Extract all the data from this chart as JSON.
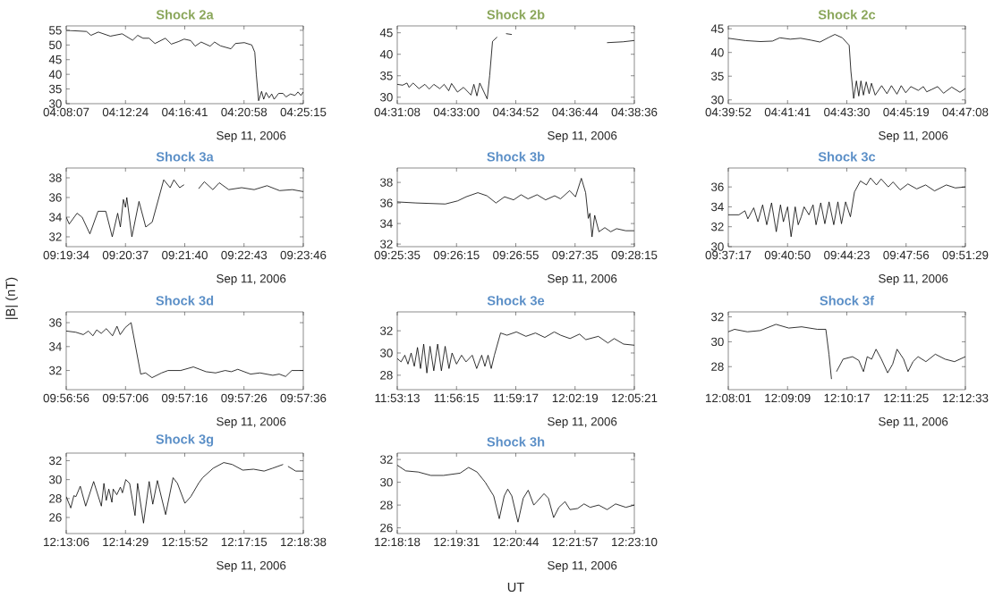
{
  "chart_data": [
    {
      "type": "line",
      "title": "Shock 2a",
      "annotations": [
        "Sep 11, 2006"
      ],
      "xlim": [
        4.13528,
        4.42083
      ],
      "ylim": [
        30,
        56.5
      ],
      "xticks": [
        {
          "value": 4.13528,
          "label": "04:08:07"
        },
        {
          "value": 4.20667,
          "label": "04:12:24"
        },
        {
          "value": 4.27806,
          "label": "04:16:41"
        },
        {
          "value": 4.34944,
          "label": "04:20:58"
        },
        {
          "value": 4.42083,
          "label": "04:25:15"
        }
      ],
      "yticks": [
        30,
        35,
        40,
        45,
        50,
        55
      ],
      "series": [
        {
          "color": "#000000",
          "x": [
            4.1353,
            4.1597,
            4.1651,
            4.174,
            4.1884,
            4.2027,
            4.2153,
            4.2214,
            4.2278,
            4.235,
            4.2422,
            4.2547,
            4.2619,
            4.2709,
            4.2773,
            4.2852,
            4.2906,
            4.2978,
            4.3086,
            4.3139,
            4.3211,
            4.3337,
            4.339,
            4.3498,
            4.3588,
            4.3624,
            4.3642,
            4.367,
            4.3706,
            4.3731,
            4.376,
            4.3796,
            4.3828,
            4.3857,
            4.3911,
            4.3964,
            4.4,
            4.4054,
            4.4108,
            4.4144,
            4.418,
            4.4208
          ],
          "values": [
            55.0,
            54.6,
            53.3,
            54.4,
            53.0,
            53.8,
            51.6,
            53.3,
            52.3,
            52.3,
            50.5,
            52.3,
            50.3,
            51.2,
            52.0,
            51.5,
            49.6,
            51.0,
            49.6,
            51.0,
            49.7,
            48.7,
            50.5,
            50.8,
            50.0,
            47.5,
            40.0,
            31.0,
            34.2,
            31.5,
            33.8,
            32.0,
            33.3,
            31.5,
            33.5,
            33.5,
            32.3,
            33.3,
            32.8,
            34.0,
            32.8,
            34.0
          ]
        }
      ]
    },
    {
      "type": "line",
      "title": "Shock 2b",
      "annotations": [
        "Sep 11, 2006"
      ],
      "xlim": [
        4.51889,
        4.64333
      ],
      "ylim": [
        28.5,
        46.6
      ],
      "xticks": [
        {
          "value": 4.51889,
          "label": "04:31:08"
        },
        {
          "value": 4.55,
          "label": "04:33:00"
        },
        {
          "value": 4.58111,
          "label": "04:34:52"
        },
        {
          "value": 4.61222,
          "label": "04:36:44"
        },
        {
          "value": 4.64333,
          "label": "04:38:36"
        }
      ],
      "yticks": [
        30,
        35,
        40,
        45
      ],
      "series": [
        {
          "color": "#000000",
          "x": [
            4.5189,
            4.5217,
            4.524,
            4.5251,
            4.5272,
            4.5303,
            4.5334,
            4.5357,
            4.5381,
            4.5412,
            4.5435,
            4.5459,
            4.5474,
            4.5505,
            4.5537,
            4.5576,
            4.5591,
            4.5607,
            4.5622,
            4.5661,
            4.5674,
            4.5689,
            4.5713,
            4.574,
            4.576,
            4.579,
            4.6,
            4.629,
            4.6374,
            4.6433
          ],
          "values": [
            33.0,
            32.8,
            33.3,
            32.3,
            33.3,
            32.0,
            33.0,
            31.9,
            33.0,
            32.0,
            33.0,
            31.5,
            33.2,
            31.2,
            32.3,
            30.5,
            33.0,
            30.3,
            33.3,
            29.6,
            35.0,
            43.0,
            44.0,
            null,
            44.8,
            44.6,
            null,
            42.7,
            42.9,
            43.2
          ]
        }
      ]
    },
    {
      "type": "line",
      "title": "Shock 2c",
      "annotations": [
        "Sep 11, 2006"
      ],
      "xlim": [
        4.66444,
        4.78556
      ],
      "ylim": [
        29.2,
        45.6
      ],
      "xticks": [
        {
          "value": 4.66444,
          "label": "04:39:52"
        },
        {
          "value": 4.69472,
          "label": "04:41:41"
        },
        {
          "value": 4.725,
          "label": "04:43:30"
        },
        {
          "value": 4.75528,
          "label": "04:45:19"
        },
        {
          "value": 4.78556,
          "label": "04:47:08"
        }
      ],
      "yticks": [
        30,
        35,
        40,
        45
      ],
      "series": [
        {
          "color": "#000000",
          "x": [
            4.66444,
            4.6733,
            4.6809,
            4.687,
            4.6908,
            4.6961,
            4.7014,
            4.7067,
            4.7113,
            4.7159,
            4.7189,
            4.7227,
            4.7262,
            4.7271,
            4.7285,
            4.7299,
            4.7311,
            4.7322,
            4.7335,
            4.7349,
            4.7364,
            4.7376,
            4.7395,
            4.7428,
            4.7455,
            4.7478,
            4.7506,
            4.7528,
            4.7551,
            4.7577,
            4.7615,
            4.7641,
            4.7658,
            4.7684,
            4.7714,
            4.7744,
            4.7786,
            4.7828,
            4.78556
          ],
          "values": [
            43.0,
            42.5,
            42.3,
            42.4,
            43.1,
            42.8,
            43.0,
            42.6,
            42.2,
            43.2,
            43.8,
            43.1,
            41.5,
            36.0,
            30.3,
            34.0,
            30.8,
            34.0,
            31.0,
            33.8,
            31.3,
            33.5,
            31.0,
            33.0,
            31.3,
            33.0,
            31.2,
            33.0,
            31.5,
            32.8,
            32.0,
            32.8,
            31.7,
            32.2,
            32.8,
            31.4,
            32.7,
            31.6,
            32.4
          ]
        }
      ]
    },
    {
      "type": "line",
      "title": "Shock 3a",
      "annotations": [
        "Sep 11, 2006"
      ],
      "xlim": [
        9.32611,
        9.39611
      ],
      "ylim": [
        31,
        39
      ],
      "xticks": [
        {
          "value": 9.32611,
          "label": "09:19:34"
        },
        {
          "value": 9.34361,
          "label": "09:20:37"
        },
        {
          "value": 9.36111,
          "label": "09:21:40"
        },
        {
          "value": 9.37861,
          "label": "09:22:43"
        },
        {
          "value": 9.39611,
          "label": "09:23:46"
        }
      ],
      "yticks": [
        32,
        34,
        36,
        38
      ],
      "series": [
        {
          "color": "#000000",
          "x": [
            9.32611,
            9.327,
            9.3293,
            9.3308,
            9.3331,
            9.3355,
            9.3378,
            9.3397,
            9.3413,
            9.3421,
            9.343,
            9.3436,
            9.344,
            9.3455,
            9.3476,
            9.3496,
            9.3515,
            9.3549,
            9.3568,
            9.3579,
            9.3596,
            9.3609,
            9.363,
            9.3652,
            9.3669,
            9.3694,
            9.3713,
            9.3741,
            9.3779,
            9.3816,
            9.3854,
            9.3891,
            9.3929,
            9.3961
          ],
          "values": [
            34.0,
            33.3,
            34.4,
            34.0,
            32.3,
            34.6,
            34.6,
            32.0,
            34.4,
            33.0,
            35.8,
            35.0,
            36.0,
            32.0,
            35.6,
            33.0,
            33.5,
            37.8,
            37.0,
            37.8,
            37.0,
            37.3,
            null,
            36.9,
            37.6,
            36.8,
            37.5,
            36.8,
            37.0,
            36.8,
            37.2,
            36.7,
            36.8,
            36.6
          ]
        }
      ]
    },
    {
      "type": "line",
      "title": "Shock 3b",
      "annotations": [
        "Sep 11, 2006"
      ],
      "xlim": [
        9.42639,
        9.47083
      ],
      "ylim": [
        31.75,
        39.4
      ],
      "xticks": [
        {
          "value": 9.42639,
          "label": "09:25:35"
        },
        {
          "value": 9.4375,
          "label": "09:26:15"
        },
        {
          "value": 9.44861,
          "label": "09:26:55"
        },
        {
          "value": 9.45972,
          "label": "09:27:35"
        },
        {
          "value": 9.47083,
          "label": "09:28:15"
        }
      ],
      "yticks": [
        32,
        34,
        36,
        38
      ],
      "series": [
        {
          "color": "#000000",
          "x": [
            9.4264,
            9.4299,
            9.4354,
            9.4377,
            9.4393,
            9.4415,
            9.4432,
            9.4449,
            9.4465,
            9.4482,
            9.4496,
            9.4509,
            9.4526,
            9.4542,
            9.4559,
            9.457,
            9.4587,
            9.4598,
            9.4609,
            9.4617,
            9.4622,
            9.4625,
            9.4629,
            9.4634,
            9.4642,
            9.4653,
            9.4664,
            9.4675,
            9.4692,
            9.4708
          ],
          "values": [
            36.1,
            36.0,
            35.9,
            36.2,
            36.6,
            37.0,
            36.7,
            36.0,
            36.6,
            36.3,
            36.8,
            36.4,
            36.8,
            36.3,
            36.7,
            36.4,
            37.2,
            36.6,
            38.4,
            37.0,
            34.5,
            35.0,
            32.7,
            34.8,
            33.2,
            33.6,
            33.2,
            33.5,
            33.3,
            33.3
          ]
        }
      ]
    },
    {
      "type": "line",
      "title": "Shock 3c",
      "annotations": [
        "Sep 11, 2006"
      ],
      "xlim": [
        9.62139,
        9.85806
      ],
      "ylim": [
        30,
        37.9
      ],
      "xticks": [
        {
          "value": 9.62139,
          "label": "09:37:17"
        },
        {
          "value": 9.68056,
          "label": "09:40:50"
        },
        {
          "value": 9.73972,
          "label": "09:44:23"
        },
        {
          "value": 9.79889,
          "label": "09:47:56"
        },
        {
          "value": 9.85806,
          "label": "09:51:29"
        }
      ],
      "yticks": [
        30,
        32,
        34,
        36
      ],
      "series": [
        {
          "color": "#000000",
          "x": [
            9.6214,
            9.632,
            9.638,
            9.6409,
            9.6468,
            9.651,
            9.6557,
            9.6598,
            9.6646,
            9.6693,
            9.6735,
            9.6764,
            9.6806,
            9.6841,
            9.6882,
            9.6912,
            9.6942,
            9.6971,
            9.7019,
            9.706,
            9.709,
            9.7137,
            9.7178,
            9.722,
            9.7267,
            9.7308,
            9.7344,
            9.7385,
            9.7433,
            9.7474,
            9.7533,
            9.7593,
            9.7634,
            9.7693,
            9.774,
            9.7811,
            9.7859,
            9.793,
            9.8007,
            9.8095,
            9.8184,
            9.8273,
            9.8391,
            9.848,
            9.85806
          ],
          "values": [
            33.2,
            33.2,
            33.6,
            32.8,
            33.9,
            32.5,
            34.2,
            32.2,
            34.4,
            31.5,
            34.2,
            32.5,
            34.0,
            31.0,
            34.0,
            32.2,
            33.0,
            34.0,
            33.2,
            34.2,
            32.2,
            34.4,
            32.3,
            34.5,
            32.2,
            34.5,
            32.3,
            34.5,
            33.0,
            35.5,
            36.6,
            36.2,
            36.9,
            36.2,
            36.8,
            36.0,
            36.5,
            35.7,
            36.3,
            35.8,
            36.2,
            35.6,
            36.2,
            35.9,
            36.0
          ]
        }
      ]
    },
    {
      "type": "line",
      "title": "Shock 3d",
      "ylabel": "|B| (nT)",
      "annotations": [
        "Sep 11, 2006"
      ],
      "xlim": [
        9.94889,
        9.96
      ],
      "ylim": [
        30.4,
        36.9
      ],
      "xticks": [
        {
          "value": 9.94889,
          "label": "09:56:56"
        },
        {
          "value": 9.95167,
          "label": "09:57:06"
        },
        {
          "value": 9.95444,
          "label": "09:57:16"
        },
        {
          "value": 9.95722,
          "label": "09:57:26"
        },
        {
          "value": 9.96,
          "label": "09:57:36"
        }
      ],
      "yticks": [
        32,
        34,
        36
      ],
      "series": [
        {
          "color": "#000000",
          "x": [
            9.94889,
            9.94934,
            9.94969,
            9.94993,
            9.95014,
            9.95032,
            9.95053,
            9.95077,
            9.95106,
            9.95127,
            9.95142,
            9.95166,
            9.95193,
            9.95211,
            9.95238,
            9.95261,
            9.95291,
            9.95336,
            9.95366,
            9.95425,
            9.95485,
            9.95544,
            9.95589,
            9.95634,
            9.95663,
            9.95693,
            9.95753,
            9.95797,
            9.95857,
            9.95887,
            9.95917,
            9.95946,
            9.96
          ],
          "values": [
            35.3,
            35.2,
            35.0,
            35.3,
            34.9,
            35.4,
            35.1,
            35.5,
            34.9,
            35.7,
            35.0,
            35.6,
            36.0,
            34.3,
            31.7,
            31.8,
            31.4,
            31.8,
            32.0,
            32.0,
            32.3,
            31.9,
            31.8,
            32.0,
            31.9,
            32.1,
            31.7,
            31.8,
            31.6,
            31.7,
            31.5,
            32.0,
            32.0
          ]
        }
      ]
    },
    {
      "type": "line",
      "title": "Shock 3e",
      "annotations": [
        "Sep 11, 2006"
      ],
      "xlim": [
        11.88694,
        12.08917
      ],
      "ylim": [
        26.7,
        33.7
      ],
      "xticks": [
        {
          "value": 11.88694,
          "label": "11:53:13"
        },
        {
          "value": 11.9375,
          "label": "11:56:15"
        },
        {
          "value": 11.98806,
          "label": "11:59:17"
        },
        {
          "value": 12.03861,
          "label": "12:02:19"
        },
        {
          "value": 12.08917,
          "label": "12:05:21"
        }
      ],
      "yticks": [
        28,
        30,
        32
      ],
      "series": [
        {
          "color": "#000000",
          "x": [
            11.88694,
            11.8902,
            11.8934,
            11.8961,
            11.8988,
            11.9015,
            11.9042,
            11.9068,
            11.9095,
            11.9122,
            11.9149,
            11.9181,
            11.9214,
            11.9246,
            11.9278,
            11.9311,
            11.9337,
            11.9375,
            11.9418,
            11.9456,
            11.9509,
            11.9547,
            11.959,
            11.9617,
            11.9644,
            11.9671,
            11.9698,
            11.9751,
            11.9805,
            11.9886,
            11.9967,
            12.0048,
            12.0128,
            12.0209,
            12.0263,
            12.0343,
            12.0424,
            12.0478,
            12.0585,
            12.0666,
            12.072,
            12.08,
            12.08917
          ],
          "values": [
            29.5,
            29.2,
            29.8,
            29.0,
            30.0,
            28.8,
            30.5,
            28.6,
            30.8,
            28.2,
            30.6,
            28.4,
            30.8,
            28.4,
            30.6,
            28.6,
            30.0,
            29.0,
            29.8,
            29.2,
            29.8,
            28.6,
            29.8,
            28.8,
            29.8,
            28.6,
            29.8,
            31.8,
            31.6,
            31.9,
            31.5,
            31.8,
            31.4,
            31.9,
            31.6,
            31.3,
            31.7,
            31.2,
            31.5,
            30.9,
            31.3,
            30.8,
            30.7
          ]
        }
      ]
    },
    {
      "type": "line",
      "title": "Shock 3f",
      "annotations": [
        "Sep 11, 2006"
      ],
      "xlim": [
        12.13361,
        12.20917
      ],
      "ylim": [
        26.15,
        32.4
      ],
      "xticks": [
        {
          "value": 12.13361,
          "label": "12:08:01"
        },
        {
          "value": 12.1525,
          "label": "12:09:09"
        },
        {
          "value": 12.17139,
          "label": "12:10:17"
        },
        {
          "value": 12.19028,
          "label": "12:11:25"
        },
        {
          "value": 12.20917,
          "label": "12:12:33"
        }
      ],
      "yticks": [
        28,
        30,
        32
      ],
      "series": [
        {
          "color": "#000000",
          "x": [
            12.13361,
            12.1356,
            12.1397,
            12.1438,
            12.1488,
            12.1529,
            12.157,
            12.162,
            12.1647,
            12.1657,
            12.1665,
            12.1673,
            12.1681,
            12.1702,
            12.1732,
            12.1752,
            12.1767,
            12.1779,
            12.1793,
            12.1807,
            12.1824,
            12.1844,
            12.186,
            12.1874,
            12.1895,
            12.1909,
            12.1925,
            12.1941,
            12.1966,
            12.1996,
            12.2027,
            12.2057,
            12.20917
          ],
          "values": [
            30.8,
            31.0,
            30.8,
            30.9,
            31.4,
            31.1,
            31.2,
            31.0,
            31.0,
            29.0,
            27.0,
            null,
            27.6,
            28.6,
            28.8,
            28.5,
            27.6,
            28.8,
            28.6,
            29.4,
            28.6,
            27.5,
            28.2,
            29.4,
            28.6,
            27.6,
            28.4,
            28.8,
            28.4,
            29.0,
            28.6,
            28.4,
            28.8
          ]
        }
      ]
    },
    {
      "type": "line",
      "title": "Shock 3g",
      "annotations": [
        "Sep 11, 2006"
      ],
      "xlim": [
        12.21833,
        12.31056
      ],
      "ylim": [
        24.3,
        32.8
      ],
      "xticks": [
        {
          "value": 12.21833,
          "label": "12:13:06"
        },
        {
          "value": 12.24139,
          "label": "12:14:29"
        },
        {
          "value": 12.26444,
          "label": "12:15:52"
        },
        {
          "value": 12.2875,
          "label": "12:17:15"
        },
        {
          "value": 12.31056,
          "label": "12:18:38"
        }
      ],
      "yticks": [
        26,
        28,
        30,
        32
      ],
      "series": [
        {
          "color": "#000000",
          "x": [
            12.21833,
            12.2201,
            12.2213,
            12.2221,
            12.2238,
            12.2259,
            12.229,
            12.232,
            12.233,
            12.2339,
            12.2349,
            12.2361,
            12.2366,
            12.238,
            12.2394,
            12.2402,
            12.2415,
            12.243,
            12.2451,
            12.2461,
            12.2484,
            12.2506,
            12.252,
            12.2538,
            12.257,
            12.2599,
            12.2616,
            12.2645,
            12.2668,
            12.2698,
            12.2714,
            12.2755,
            12.2796,
            12.2829,
            12.287,
            12.2912,
            12.2953,
            12.2986,
            12.3027,
            12.3037,
            12.3046,
            12.3076,
            12.31056
          ],
          "values": [
            28.2,
            27.0,
            28.3,
            28.2,
            29.3,
            27.2,
            29.8,
            27.2,
            29.6,
            27.8,
            29.0,
            27.6,
            29.0,
            28.4,
            29.2,
            28.6,
            30.0,
            29.6,
            26.2,
            29.6,
            25.4,
            29.8,
            27.4,
            29.9,
            26.3,
            30.2,
            29.6,
            27.5,
            28.2,
            29.6,
            30.2,
            31.2,
            31.8,
            31.6,
            31.0,
            31.1,
            30.9,
            31.2,
            31.6,
            null,
            31.4,
            30.9,
            30.9
          ]
        }
      ]
    },
    {
      "type": "line",
      "title": "Shock 3h",
      "xlabel": "UT",
      "annotations": [
        "Sep 11, 2006"
      ],
      "xlim": [
        12.305,
        12.38611
      ],
      "ylim": [
        25.5,
        32.56
      ],
      "xticks": [
        {
          "value": 12.305,
          "label": "12:18:18"
        },
        {
          "value": 12.32528,
          "label": "12:19:31"
        },
        {
          "value": 12.34556,
          "label": "12:20:44"
        },
        {
          "value": 12.36583,
          "label": "12:21:57"
        },
        {
          "value": 12.38611,
          "label": "12:23:10"
        }
      ],
      "yticks": [
        26,
        28,
        30,
        32
      ],
      "series": [
        {
          "color": "#000000",
          "x": [
            12.305,
            12.3079,
            12.3122,
            12.3165,
            12.3208,
            12.3265,
            12.3294,
            12.3323,
            12.3351,
            12.338,
            12.3399,
            12.3416,
            12.3428,
            12.3442,
            12.3463,
            12.3481,
            12.3498,
            12.3517,
            12.3528,
            12.3552,
            12.3567,
            12.3585,
            12.3603,
            12.3624,
            12.3641,
            12.3667,
            12.3689,
            12.371,
            12.3739,
            12.3768,
            12.3797,
            12.3832,
            12.3861
          ],
          "values": [
            31.5,
            31.0,
            30.9,
            30.6,
            30.6,
            30.8,
            31.3,
            30.9,
            30.0,
            28.8,
            26.8,
            28.8,
            29.4,
            28.8,
            26.5,
            28.6,
            29.3,
            28.0,
            28.3,
            29.0,
            28.6,
            26.9,
            27.8,
            28.3,
            27.6,
            27.7,
            28.1,
            27.8,
            28.0,
            27.6,
            28.1,
            27.8,
            28.0
          ]
        }
      ]
    }
  ]
}
